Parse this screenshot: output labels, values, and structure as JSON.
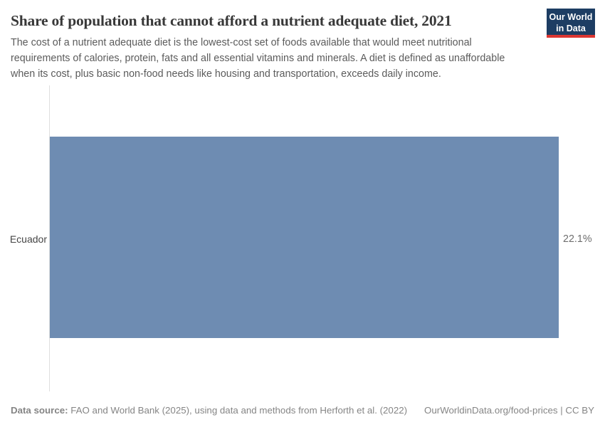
{
  "header": {
    "title": "Share of population that cannot afford a nutrient adequate diet, 2021",
    "subtitle_lines": [
      "The cost of a nutrient adequate diet is the lowest-cost set of foods available that would meet nutritional",
      "requirements of calories, protein, fats and all essential vitamins and minerals. A diet is defined as unaffordable",
      "when its cost, plus basic non-food needs like housing and transportation, exceeds daily income."
    ],
    "logo": {
      "line1": "Our World",
      "line2": "in Data",
      "bg_color": "#1d3d63",
      "accent_color": "#dc3632"
    }
  },
  "chart_data": {
    "type": "bar",
    "orientation": "horizontal",
    "title": "Share of population that cannot afford a nutrient adequate diet, 2021",
    "categories": [
      "Ecuador"
    ],
    "values": [
      22.1
    ],
    "value_labels": [
      "22.1%"
    ],
    "xlabel": "",
    "ylabel": "",
    "xlim": [
      0,
      22.1
    ],
    "grid": false,
    "legend": "none",
    "bar_color": "#6e8cb2",
    "axis_line_color": "#dedede"
  },
  "footer": {
    "source_label": "Data source:",
    "source_text": " FAO and World Bank (2025), using data and methods from Herforth et al. (2022)",
    "link_text": "OurWorldinData.org/food-prices | CC BY"
  }
}
